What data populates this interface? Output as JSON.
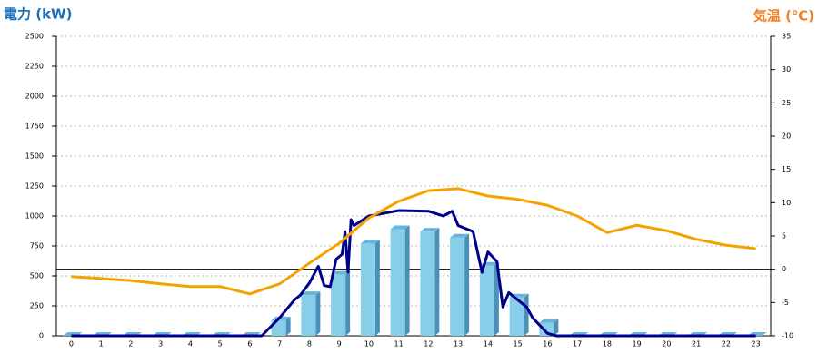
{
  "chart_data": {
    "type": "bar",
    "y_label": "電力 (kW)",
    "y2_label": "気温 (℃)",
    "categories": [
      0,
      1,
      2,
      3,
      4,
      5,
      6,
      7,
      8,
      9,
      10,
      11,
      12,
      13,
      14,
      15,
      16,
      17,
      18,
      19,
      20,
      21,
      22,
      23
    ],
    "ylim": [
      0,
      2500
    ],
    "yticks": [
      0,
      250,
      500,
      750,
      1000,
      1250,
      1500,
      1750,
      2000,
      2250,
      2500
    ],
    "y2lim": [
      -10,
      35
    ],
    "y2ticks": [
      -10,
      -5,
      0,
      5,
      10,
      15,
      20,
      25,
      30,
      35
    ],
    "grid": true,
    "series": [
      {
        "type": "bar",
        "color": "#87ceeb",
        "values": [
          0,
          0,
          0,
          0,
          0,
          0,
          0,
          130,
          340,
          510,
          770,
          890,
          870,
          820,
          585,
          320,
          110,
          0,
          0,
          0,
          0,
          0,
          0,
          0
        ]
      },
      {
        "type": "line",
        "color": "#00008b",
        "x": [
          0,
          6.4,
          7,
          7.5,
          7.7,
          8,
          8.3,
          8.5,
          8.7,
          8.9,
          9.1,
          9.2,
          9.3,
          9.4,
          9.5,
          10,
          11,
          12,
          12.5,
          12.8,
          13,
          13.5,
          13.8,
          14,
          14.3,
          14.5,
          14.7,
          15,
          15.3,
          15.5,
          16,
          16.3,
          23
        ],
        "values": [
          0,
          0,
          150,
          300,
          340,
          440,
          580,
          420,
          410,
          640,
          680,
          870,
          530,
          970,
          920,
          1000,
          1045,
          1040,
          1000,
          1040,
          920,
          870,
          530,
          700,
          620,
          240,
          360,
          300,
          240,
          150,
          20,
          0,
          0
        ]
      },
      {
        "type": "line",
        "axis": "y2",
        "color": "#f5a200",
        "values": [
          -1.1,
          -1.4,
          -1.7,
          -2.2,
          -2.6,
          -2.6,
          -3.7,
          -2.2,
          0.9,
          3.9,
          7.7,
          10.2,
          11.8,
          12.1,
          11,
          10.5,
          9.6,
          8,
          5.5,
          6.6,
          5.8,
          4.5,
          3.6,
          3.1
        ]
      }
    ]
  }
}
